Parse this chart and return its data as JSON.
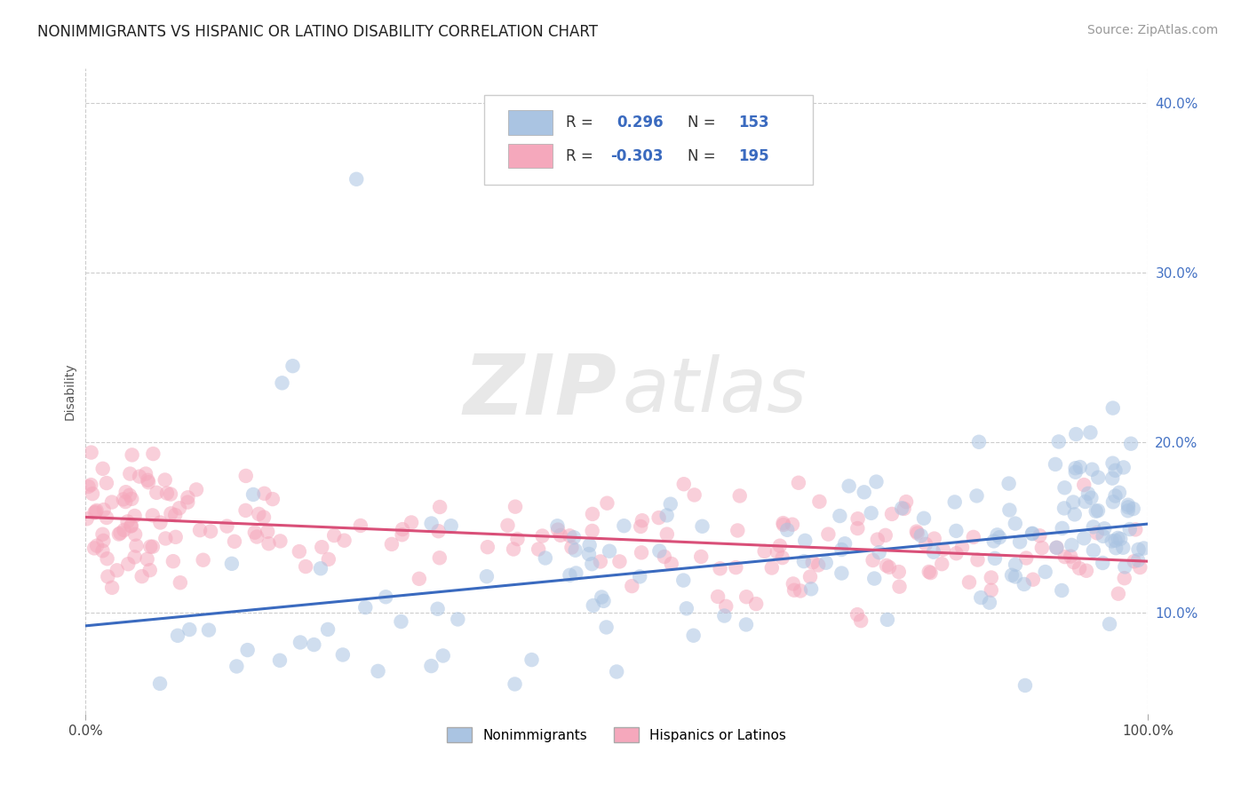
{
  "title": "NONIMMIGRANTS VS HISPANIC OR LATINO DISABILITY CORRELATION CHART",
  "source_text": "Source: ZipAtlas.com",
  "ylabel": "Disability",
  "xlim": [
    0,
    1
  ],
  "ylim": [
    0.04,
    0.42
  ],
  "yticks": [
    0.1,
    0.2,
    0.3,
    0.4
  ],
  "ytick_labels": [
    "10.0%",
    "20.0%",
    "30.0%",
    "40.0%"
  ],
  "xticks": [
    0.0,
    1.0
  ],
  "xtick_labels": [
    "0.0%",
    "100.0%"
  ],
  "blue_R": 0.296,
  "blue_N": 153,
  "pink_R": -0.303,
  "pink_N": 195,
  "legend_labels": [
    "Nonimmigrants",
    "Hispanics or Latinos"
  ],
  "blue_color": "#aac4e2",
  "pink_color": "#f5a8bc",
  "blue_line_color": "#3a6abf",
  "pink_line_color": "#d94f78",
  "watermark_zip": "ZIP",
  "watermark_atlas": "atlas",
  "watermark_color": "#e0e0e0",
  "background_color": "#ffffff",
  "grid_color": "#cccccc",
  "blue_trend_y0": 0.092,
  "blue_trend_y1": 0.152,
  "pink_trend_y0": 0.156,
  "pink_trend_y1": 0.13,
  "title_fontsize": 12,
  "axis_label_fontsize": 10,
  "tick_fontsize": 11,
  "legend_fontsize": 11,
  "source_fontsize": 10
}
